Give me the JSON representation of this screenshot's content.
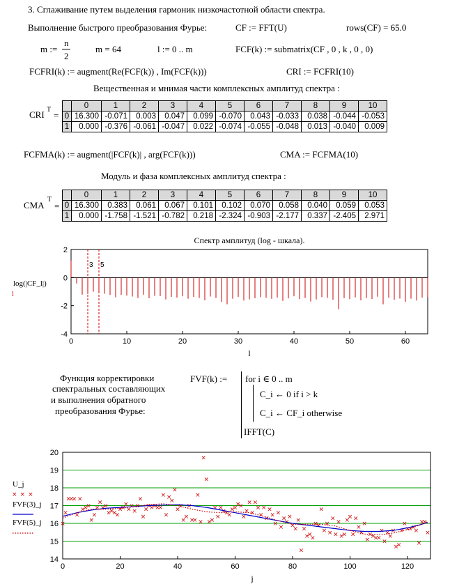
{
  "section_title": "3. Сглаживание путем выделения гармоник низкочастотной области спектра.",
  "fft_label": "Выполнение быстрого преобразования Фурье:",
  "fft_expr": "CF := FFT(U)",
  "rows_expr": "rows(CF) = 65.0",
  "m_def_prefix": "m :=",
  "m_def_num": "n",
  "m_def_den": "2",
  "m_value": "m = 64",
  "l_range": "l := 0 .. m",
  "fcf_def": "FCF(k) := submatrix(CF , 0 , k , 0 , 0)",
  "fcfri_def": "FCFRI(k) := augment(Re(FCF(k)) , Im(FCF(k)))",
  "cri_def": "CRI := FCFRI(10)",
  "re_im_caption": "Вещественная и мнимая части комплексных амплитуд спектра :",
  "cri_label": "CRI",
  "cri_sup": "T",
  "eq": "=",
  "col_headers": [
    "0",
    "1",
    "2",
    "3",
    "4",
    "5",
    "6",
    "7",
    "8",
    "9",
    "10"
  ],
  "row_headers": [
    "0",
    "1"
  ],
  "cri_rows": [
    [
      "16.300",
      "-0.071",
      "0.003",
      "0.047",
      "0.099",
      "-0.070",
      "0.043",
      "-0.033",
      "0.038",
      "-0.044",
      "-0.053"
    ],
    [
      "0.000",
      "-0.376",
      "-0.061",
      "-0.047",
      "0.022",
      "-0.074",
      "-0.055",
      "-0.048",
      "0.013",
      "-0.040",
      "0.009"
    ]
  ],
  "fcfma_def": "FCFMA(k) := augment(|FCF(k)| , arg(FCF(k)))",
  "cma_def": "CMA := FCFMA(10)",
  "mod_phase_caption": "Модуль и фаза комплексных амплитуд спектра :",
  "cma_label": "CMA",
  "cma_rows": [
    [
      "16.300",
      "0.383",
      "0.061",
      "0.067",
      "0.101",
      "0.102",
      "0.070",
      "0.058",
      "0.040",
      "0.059",
      "0.053"
    ],
    [
      "0.000",
      "-1.758",
      "-1.521",
      "-0.782",
      "0.218",
      "-2.324",
      "-0.903",
      "-2.177",
      "0.337",
      "-2.405",
      "2.971"
    ]
  ],
  "func_caption_lines": [
    "Функция корректировки",
    "спектральных составляющих",
    "и выполнения обратного",
    "преобразования Фурье:"
  ],
  "fvf_head": "FVF(k) :=",
  "prog_lines": [
    "for  i ∈ 0 .. m",
    "C_i ← 0  if  i > k",
    "C_i ← CF_i  otherwise",
    "IFFT(C)"
  ],
  "colors": {
    "stem": "#cc0000",
    "smooth": "#0000cc",
    "grid": "#00a000",
    "marker": "#cc0000"
  },
  "chart_data": [
    {
      "type": "bar",
      "title": "Спектр амплитуд (log - шкала).",
      "ylabel": "log(|CF_l|)",
      "ylabel_sub": "l",
      "xlabel": "l",
      "xlim": [
        0,
        64
      ],
      "ylim": [
        -4,
        2
      ],
      "xticks": [
        0,
        10,
        20,
        30,
        40,
        50,
        60
      ],
      "yticks": [
        2,
        0,
        -2,
        -4
      ],
      "markers": [
        3,
        5
      ],
      "marker_labels": [
        "3",
        "5"
      ],
      "x": [
        0,
        1,
        2,
        3,
        4,
        5,
        6,
        7,
        8,
        9,
        10,
        11,
        12,
        13,
        14,
        15,
        16,
        17,
        18,
        19,
        20,
        21,
        22,
        23,
        24,
        25,
        26,
        27,
        28,
        29,
        30,
        31,
        32,
        33,
        34,
        35,
        36,
        37,
        38,
        39,
        40,
        41,
        42,
        43,
        44,
        45,
        46,
        47,
        48,
        49,
        50,
        51,
        52,
        53,
        54,
        55,
        56,
        57,
        58,
        59,
        60,
        61,
        62,
        63,
        64
      ],
      "values": [
        1.21,
        -0.42,
        -1.21,
        -1.17,
        -1.0,
        -0.99,
        -1.15,
        -1.24,
        -1.4,
        -1.23,
        -1.28,
        -1.35,
        -1.45,
        -1.22,
        -1.47,
        -1.3,
        -1.32,
        -1.55,
        -1.38,
        -1.42,
        -1.33,
        -1.5,
        -1.37,
        -1.45,
        -1.62,
        -1.35,
        -1.45,
        -1.72,
        -1.9,
        -1.5,
        -1.38,
        -1.63,
        -1.55,
        -1.47,
        -1.39,
        -1.44,
        -1.51,
        -1.42,
        -1.66,
        -1.48,
        -1.33,
        -1.52,
        -1.45,
        -1.7,
        -1.55,
        -1.39,
        -1.44,
        -1.57,
        -2.25,
        -1.46,
        -1.53,
        -1.41,
        -1.62,
        -1.45,
        -1.52,
        -1.36,
        -1.9,
        -1.44,
        -1.58,
        -1.49,
        -1.72,
        -1.5,
        -1.63,
        -1.42,
        -1.4
      ]
    },
    {
      "type": "scatter",
      "legend": [
        "U_j",
        "FVF(3)_j",
        "FVF(5)_j"
      ],
      "xlabel": "j",
      "xlim": [
        0,
        128
      ],
      "ylim": [
        14,
        20
      ],
      "xticks": [
        0,
        20,
        40,
        60,
        80,
        100,
        120
      ],
      "yticks": [
        20,
        19,
        18,
        17,
        16,
        15,
        14
      ],
      "grid": true,
      "series": [
        {
          "name": "U_j",
          "style": "x-markers",
          "x": [
            0,
            1,
            2,
            3,
            4,
            5,
            6,
            7,
            8,
            9,
            10,
            11,
            12,
            13,
            14,
            15,
            16,
            17,
            18,
            19,
            20,
            21,
            22,
            23,
            24,
            25,
            26,
            27,
            28,
            29,
            30,
            31,
            32,
            33,
            34,
            35,
            36,
            37,
            38,
            39,
            40,
            41,
            42,
            43,
            44,
            45,
            46,
            47,
            48,
            49,
            50,
            51,
            52,
            53,
            54,
            55,
            56,
            57,
            58,
            59,
            60,
            61,
            62,
            63,
            64,
            65,
            66,
            67,
            68,
            69,
            70,
            71,
            72,
            73,
            74,
            75,
            76,
            77,
            78,
            79,
            80,
            81,
            82,
            83,
            84,
            85,
            86,
            87,
            88,
            89,
            90,
            91,
            92,
            93,
            94,
            95,
            96,
            97,
            98,
            99,
            100,
            101,
            102,
            103,
            104,
            105,
            106,
            107,
            108,
            109,
            110,
            111,
            112,
            113,
            114,
            115,
            116,
            117,
            118,
            119,
            120,
            121,
            122,
            123,
            124,
            125,
            126,
            127
          ],
          "values": [
            16.0,
            16.6,
            17.4,
            17.4,
            17.4,
            16.5,
            17.4,
            16.8,
            16.9,
            17.0,
            16.2,
            16.5,
            16.9,
            17.2,
            16.9,
            17.0,
            16.6,
            16.7,
            16.6,
            16.5,
            16.8,
            16.9,
            17.1,
            16.8,
            17.0,
            16.7,
            17.0,
            17.4,
            16.4,
            16.8,
            17.0,
            16.9,
            17.0,
            16.9,
            16.9,
            17.6,
            16.5,
            17.5,
            17.3,
            17.9,
            16.8,
            17.0,
            16.2,
            16.4,
            17.0,
            16.2,
            16.2,
            17.6,
            16.1,
            19.7,
            18.5,
            16.1,
            16.2,
            16.9,
            16.4,
            16.9,
            16.7,
            16.6,
            16.5,
            16.8,
            16.9,
            17.1,
            17.0,
            16.4,
            16.7,
            17.2,
            16.6,
            17.2,
            16.9,
            16.5,
            16.9,
            16.3,
            16.8,
            16.5,
            16.0,
            16.6,
            15.8,
            16.3,
            16.1,
            16.4,
            15.9,
            15.7,
            16.2,
            14.5,
            15.7,
            15.3,
            15.4,
            15.2,
            16.0,
            15.9,
            16.8,
            15.6,
            16.0,
            15.5,
            16.3,
            15.4,
            16.1,
            15.3,
            15.4,
            16.2,
            16.4,
            15.4,
            16.3,
            15.8,
            15.5,
            16.0,
            15.1,
            15.4,
            15.3,
            15.2,
            15.2,
            15.6,
            15.0,
            15.5,
            15.3,
            15.6,
            14.7,
            14.8,
            15.6,
            16.0,
            15.7,
            15.7,
            15.8,
            15.6,
            14.9,
            16.1,
            16.1,
            15.5
          ]
        },
        {
          "name": "FVF(3)_j",
          "style": "solid",
          "x": [
            0,
            5,
            10,
            15,
            20,
            25,
            30,
            35,
            40,
            45,
            50,
            55,
            60,
            65,
            70,
            75,
            80,
            85,
            90,
            95,
            100,
            105,
            110,
            115,
            120,
            125,
            127
          ],
          "values": [
            16.4,
            16.6,
            16.75,
            16.85,
            16.9,
            16.95,
            17.0,
            17.03,
            17.05,
            17.0,
            16.9,
            16.75,
            16.6,
            16.45,
            16.3,
            16.15,
            16.0,
            15.9,
            15.8,
            15.7,
            15.6,
            15.55,
            15.55,
            15.6,
            15.75,
            15.95,
            16.05
          ]
        },
        {
          "name": "FVF(5)_j",
          "style": "dotted",
          "x": [
            0,
            5,
            10,
            15,
            20,
            25,
            30,
            35,
            40,
            45,
            50,
            55,
            60,
            65,
            70,
            75,
            80,
            85,
            90,
            95,
            100,
            105,
            110,
            115,
            120,
            125,
            127
          ],
          "values": [
            16.3,
            16.6,
            16.8,
            16.8,
            16.85,
            16.95,
            17.05,
            17.1,
            17.0,
            16.8,
            16.65,
            16.6,
            16.65,
            16.6,
            16.4,
            16.15,
            15.95,
            15.95,
            15.95,
            15.85,
            15.6,
            15.4,
            15.35,
            15.45,
            15.65,
            15.95,
            16.1
          ]
        }
      ]
    }
  ]
}
